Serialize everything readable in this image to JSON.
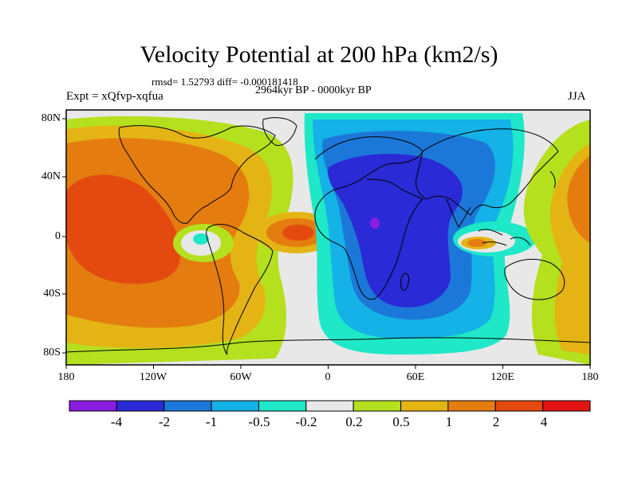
{
  "title": "Velocity Potential at 200 hPa (km2/s)",
  "stats": "rmsd= 1.52793 diff= -0.000181418",
  "period": "2964kyr BP - 0000kyr BP",
  "experiment": "Expt = xQfvp-xqfua",
  "season": "JJA",
  "x_axis_labels": [
    "180",
    "120W",
    "60W",
    "0",
    "60E",
    "120E",
    "180"
  ],
  "y_axis_labels": [
    "80N",
    "40N",
    "0",
    "40S",
    "80S"
  ],
  "colorbar": {
    "labels": [
      "-4",
      "-2",
      "-1",
      "-0.5",
      "-0.2",
      "0.2",
      "0.5",
      "1",
      "2",
      "4"
    ],
    "colors": [
      "#8a1ce0",
      "#2a2ad6",
      "#1c78d8",
      "#14b2e6",
      "#1ee8c8",
      "#e8e8e8",
      "#b4e01e",
      "#e4b414",
      "#e47c10",
      "#e44a10",
      "#e41414"
    ]
  }
}
